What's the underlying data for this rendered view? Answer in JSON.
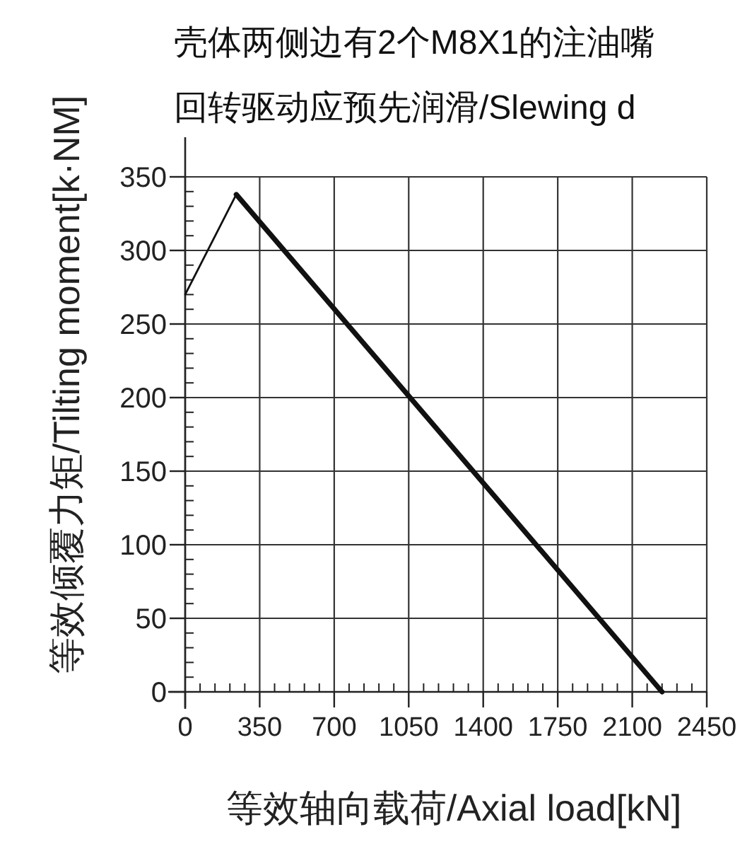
{
  "chart_data": {
    "type": "line",
    "title": "壳体两侧边有2个M8X1的注油嘴",
    "subtitle": "回转驱动应预先润滑/Slewing d",
    "xlabel": "等效轴向载荷/Axial load[kN]",
    "ylabel": "等效倾覆力矩/Tilting moment[k·NM]",
    "xlim": [
      0,
      2450
    ],
    "ylim": [
      0,
      350
    ],
    "xticks": [
      0,
      350,
      700,
      1050,
      1400,
      1750,
      2100,
      2450
    ],
    "yticks": [
      0,
      50,
      100,
      150,
      200,
      250,
      300,
      350
    ],
    "grid": true,
    "series": [
      {
        "color": "#111111",
        "x": [
          0,
          240
        ],
        "values": [
          270,
          338
        ]
      },
      {
        "color": "#111111",
        "x": [
          240,
          2240
        ],
        "values": [
          338,
          0
        ]
      }
    ]
  }
}
